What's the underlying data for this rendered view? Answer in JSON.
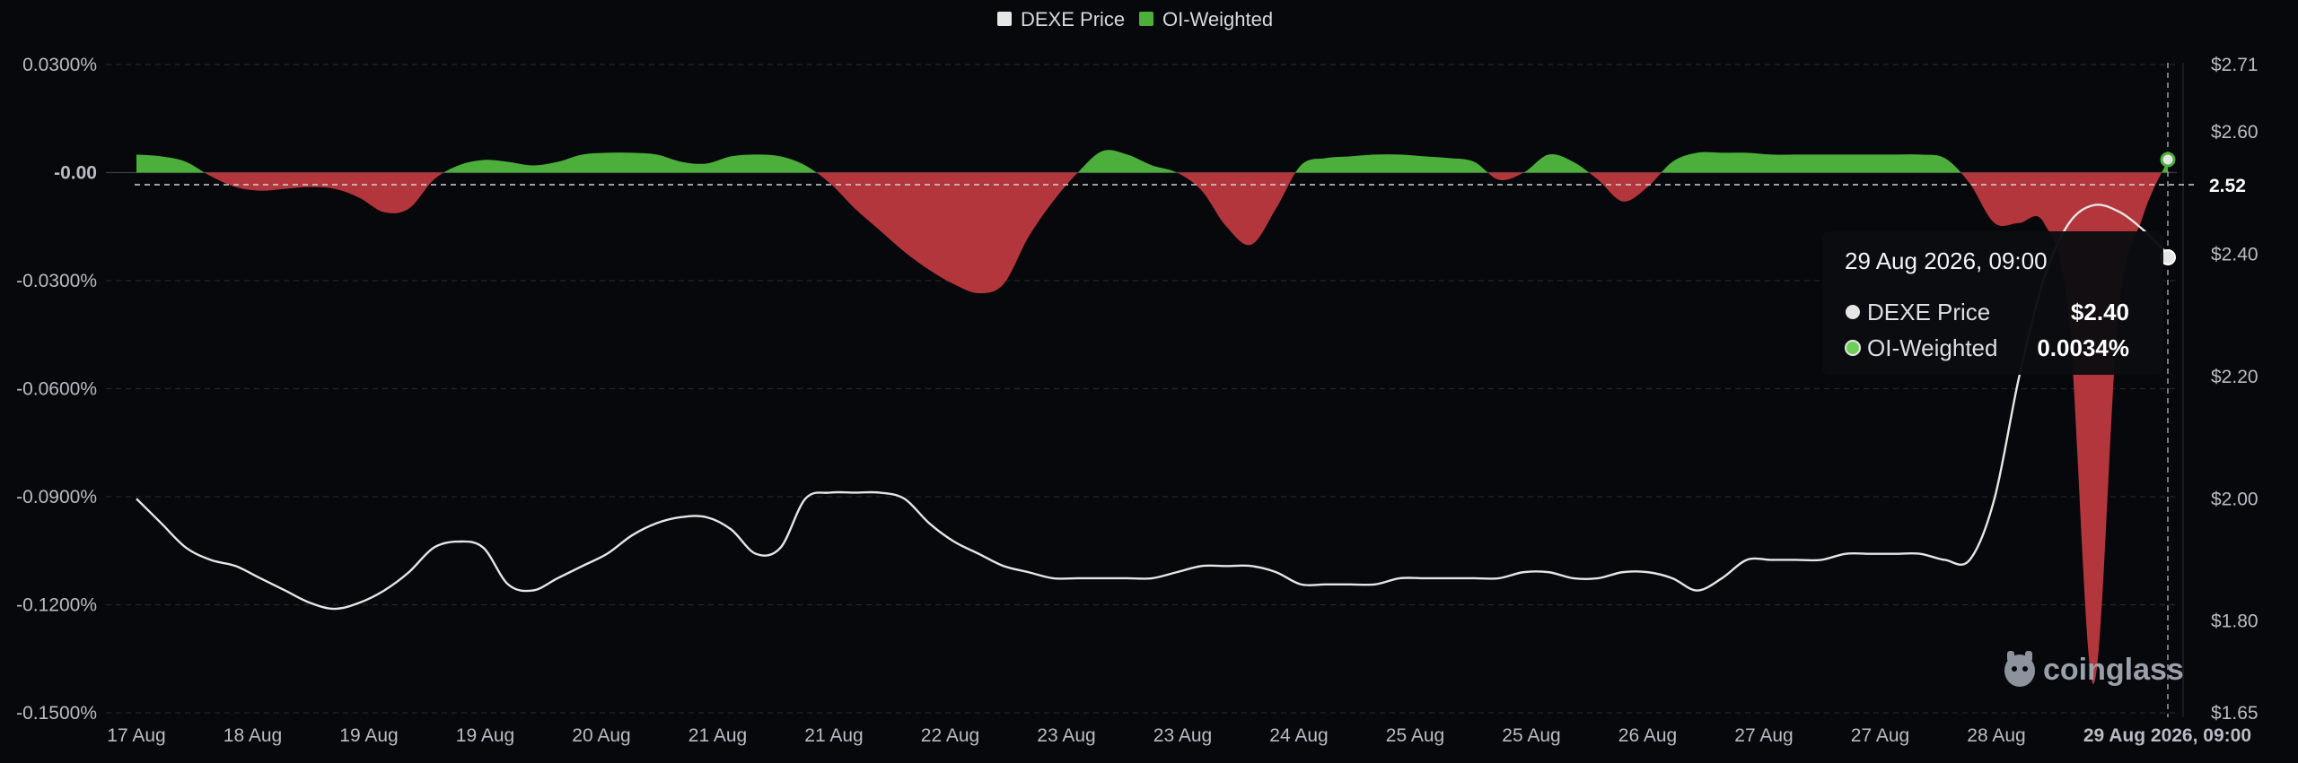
{
  "chart_data": {
    "type": "area",
    "title": "",
    "legend": {
      "position": "top-center",
      "items": [
        {
          "name": "DEXE Price",
          "color": "#e6e6e6"
        },
        {
          "name": "OI-Weighted",
          "color": "#4caf3c"
        }
      ]
    },
    "x_labels": [
      "17 Aug",
      "18 Aug",
      "19 Aug",
      "19 Aug",
      "20 Aug",
      "21 Aug",
      "21 Aug",
      "22 Aug",
      "23 Aug",
      "23 Aug",
      "24 Aug",
      "25 Aug",
      "25 Aug",
      "26 Aug",
      "27 Aug",
      "27 Aug",
      "28 Aug"
    ],
    "x_end_label": "29 Aug 2026, 09:00",
    "y_left": {
      "ticks": [
        "0.0300%",
        "-0.00",
        "-0.0300%",
        "-0.0600%",
        "-0.0900%",
        "-0.1200%",
        "-0.1500%"
      ],
      "tick_values": [
        0.03,
        0.0,
        -0.03,
        -0.06,
        -0.09,
        -0.12,
        -0.15
      ],
      "range": [
        -0.15,
        0.03
      ],
      "unit": "%"
    },
    "y_right": {
      "ticks": [
        "$2.71",
        "$2.60",
        "2.52",
        "$2.40",
        "$2.20",
        "$2.00",
        "$1.80",
        "$1.65"
      ],
      "tick_values": [
        2.71,
        2.6,
        2.52,
        2.4,
        2.2,
        2.0,
        1.8,
        1.65
      ],
      "range": [
        1.65,
        2.71
      ]
    },
    "grid": true,
    "series": [
      {
        "name": "DEXE Price",
        "axis": "right",
        "color": "#e6e6e6",
        "values": [
          2.0,
          1.96,
          1.92,
          1.9,
          1.89,
          1.87,
          1.85,
          1.83,
          1.82,
          1.83,
          1.85,
          1.88,
          1.92,
          1.93,
          1.92,
          1.86,
          1.85,
          1.87,
          1.89,
          1.91,
          1.94,
          1.96,
          1.97,
          1.97,
          1.95,
          1.91,
          1.92,
          2.0,
          2.01,
          2.01,
          2.01,
          2.0,
          1.96,
          1.93,
          1.91,
          1.89,
          1.88,
          1.87,
          1.87,
          1.87,
          1.87,
          1.87,
          1.88,
          1.89,
          1.89,
          1.89,
          1.88,
          1.86,
          1.86,
          1.86,
          1.86,
          1.87,
          1.87,
          1.87,
          1.87,
          1.87,
          1.88,
          1.88,
          1.87,
          1.87,
          1.88,
          1.88,
          1.87,
          1.85,
          1.87,
          1.9,
          1.9,
          1.9,
          1.9,
          1.91,
          1.91,
          1.91,
          1.91,
          1.9,
          1.9,
          2.0,
          2.2,
          2.36,
          2.45,
          2.48,
          2.47,
          2.44,
          2.4
        ]
      },
      {
        "name": "OI-Weighted",
        "axis": "left",
        "positive_color": "#4caf3c",
        "negative_color": "#b3363c",
        "values": [
          0.005,
          0.0045,
          0.003,
          -0.001,
          -0.004,
          -0.005,
          -0.0045,
          -0.004,
          -0.0045,
          -0.007,
          -0.011,
          -0.01,
          -0.002,
          0.002,
          0.0035,
          0.003,
          0.002,
          0.003,
          0.005,
          0.0055,
          0.0055,
          0.005,
          0.003,
          0.0025,
          0.0045,
          0.005,
          0.0045,
          0.002,
          -0.003,
          -0.01,
          -0.016,
          -0.022,
          -0.027,
          -0.031,
          -0.0335,
          -0.031,
          -0.018,
          -0.008,
          0.0,
          0.006,
          0.005,
          0.002,
          0.0,
          -0.005,
          -0.015,
          -0.02,
          -0.01,
          0.002,
          0.004,
          0.0045,
          0.005,
          0.005,
          0.0045,
          0.004,
          0.003,
          -0.002,
          0.0,
          0.005,
          0.003,
          -0.002,
          -0.008,
          -0.004,
          0.003,
          0.0055,
          0.0055,
          0.0055,
          0.005,
          0.005,
          0.005,
          0.005,
          0.005,
          0.005,
          0.005,
          0.004,
          -0.003,
          -0.014,
          -0.014,
          -0.014,
          -0.04,
          -0.142,
          -0.04,
          -0.012,
          0.0034
        ]
      }
    ],
    "tooltip": {
      "title": "29 Aug 2026, 09:00",
      "rows": [
        {
          "label": "DEXE Price",
          "value": "$2.40",
          "dot_color": "#e6e6e6"
        },
        {
          "label": "OI-Weighted",
          "value": "0.0034%",
          "dot_color": "#6ccf5a"
        }
      ]
    },
    "crosshair_value": "2.52"
  },
  "watermark": {
    "text": "coinglass"
  }
}
